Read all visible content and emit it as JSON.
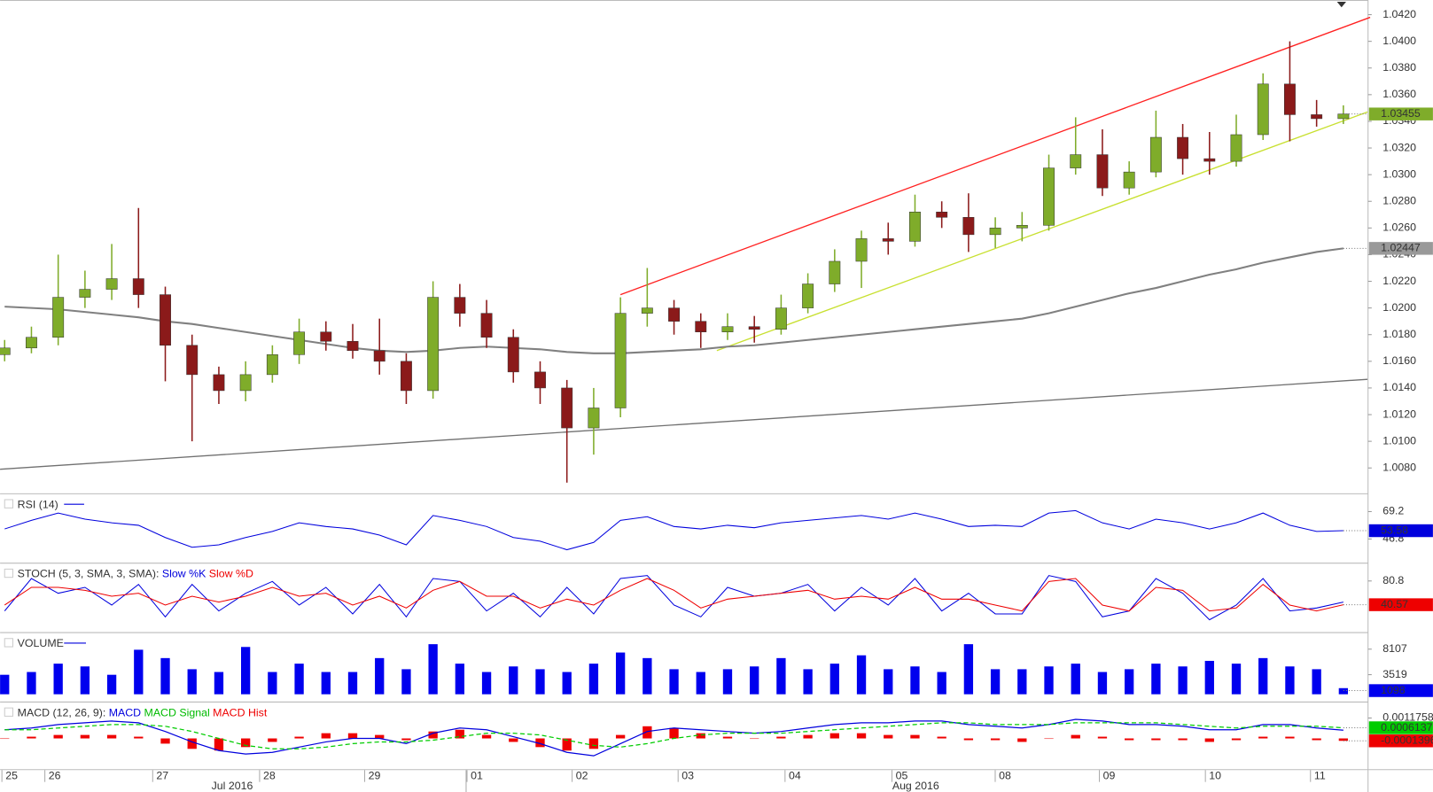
{
  "chart_data": [
    {
      "type": "candlestick",
      "open": [
        1.0165,
        1.017,
        1.0178,
        1.0208,
        1.0214,
        1.0222,
        1.021,
        1.0172,
        1.015,
        1.0138,
        1.015,
        1.0165,
        1.0182,
        1.0175,
        1.0168,
        1.016,
        1.0138,
        1.0208,
        1.0196,
        1.0178,
        1.0152,
        1.014,
        1.011,
        1.0125,
        1.0196,
        1.02,
        1.019,
        1.0182,
        1.0186,
        1.0184,
        1.02,
        1.0218,
        1.0235,
        1.0252,
        1.025,
        1.0272,
        1.0268,
        1.0255,
        1.026,
        1.0262,
        1.0305,
        1.0315,
        1.029,
        1.0302,
        1.0328,
        1.0312,
        1.031,
        1.033,
        1.0368,
        1.0345,
        1.0342
      ],
      "high": [
        1.0176,
        1.0186,
        1.024,
        1.0228,
        1.0248,
        1.0275,
        1.0216,
        1.018,
        1.0156,
        1.016,
        1.0172,
        1.0192,
        1.019,
        1.0188,
        1.0192,
        1.0166,
        1.022,
        1.0218,
        1.0206,
        1.0184,
        1.016,
        1.0146,
        1.014,
        1.0208,
        1.023,
        1.0206,
        1.0196,
        1.0196,
        1.0194,
        1.021,
        1.0226,
        1.0244,
        1.0258,
        1.0264,
        1.0285,
        1.028,
        1.0286,
        1.0268,
        1.0272,
        1.0315,
        1.0343,
        1.0334,
        1.031,
        1.0348,
        1.0338,
        1.0332,
        1.0345,
        1.0376,
        1.04,
        1.0356,
        1.0352
      ],
      "low": [
        1.016,
        1.0166,
        1.0172,
        1.02,
        1.0206,
        1.02,
        1.0145,
        1.01,
        1.0128,
        1.013,
        1.0144,
        1.0158,
        1.0168,
        1.0162,
        1.015,
        1.0128,
        1.0132,
        1.0186,
        1.017,
        1.0144,
        1.0128,
        1.0069,
        1.009,
        1.0118,
        1.0186,
        1.018,
        1.017,
        1.0176,
        1.0174,
        1.018,
        1.0196,
        1.0212,
        1.0215,
        1.024,
        1.0246,
        1.026,
        1.0242,
        1.0245,
        1.025,
        1.0258,
        1.03,
        1.0284,
        1.0285,
        1.0298,
        1.03,
        1.03,
        1.0306,
        1.0326,
        1.0325,
        1.0336,
        1.0338
      ],
      "close": [
        1.017,
        1.0178,
        1.0208,
        1.0214,
        1.0222,
        1.021,
        1.0172,
        1.015,
        1.0138,
        1.015,
        1.0165,
        1.0182,
        1.0175,
        1.0168,
        1.016,
        1.0138,
        1.0208,
        1.0196,
        1.0178,
        1.0152,
        1.014,
        1.011,
        1.0125,
        1.0196,
        1.02,
        1.019,
        1.0182,
        1.0186,
        1.0184,
        1.02,
        1.0218,
        1.0235,
        1.0252,
        1.025,
        1.0272,
        1.0268,
        1.0255,
        1.026,
        1.0262,
        1.0305,
        1.0315,
        1.029,
        1.0302,
        1.0328,
        1.0312,
        1.031,
        1.033,
        1.0368,
        1.0345,
        1.0342,
        1.03455
      ],
      "up_color": "#7fac2a",
      "down_color": "#8b1a1a",
      "ma": [
        1.0201,
        1.02,
        1.0199,
        1.0197,
        1.0195,
        1.0193,
        1.019,
        1.0188,
        1.0185,
        1.0182,
        1.0179,
        1.0176,
        1.0173,
        1.017,
        1.0168,
        1.0167,
        1.0168,
        1.017,
        1.0171,
        1.017,
        1.0169,
        1.0167,
        1.0166,
        1.0166,
        1.0167,
        1.0168,
        1.0169,
        1.0171,
        1.0172,
        1.0174,
        1.0176,
        1.0178,
        1.018,
        1.0182,
        1.0184,
        1.0186,
        1.0188,
        1.019,
        1.0192,
        1.0196,
        1.0201,
        1.0206,
        1.0211,
        1.0215,
        1.022,
        1.0225,
        1.0229,
        1.0234,
        1.0238,
        1.0242,
        1.02447
      ],
      "ma_color": "#808080",
      "trendlines": [
        {
          "color": "#ff2020",
          "x": [
            23,
            51
          ],
          "y": [
            1.021,
            1.0418
          ]
        },
        {
          "color": "#c8e030",
          "x": [
            26.6,
            50.9
          ],
          "y": [
            1.0168,
            1.0347
          ]
        },
        {
          "color": "#707070",
          "x": [
            -0.17,
            50.9
          ],
          "y": [
            1.0079,
            1.01465
          ]
        }
      ],
      "ylim": [
        1.0061,
        1.0431
      ],
      "yticks": [
        {
          "value": 1.008,
          "label": "1.0080"
        },
        {
          "value": 1.01,
          "label": "1.0100"
        },
        {
          "value": 1.012,
          "label": "1.0120"
        },
        {
          "value": 1.014,
          "label": "1.0140"
        },
        {
          "value": 1.016,
          "label": "1.0160"
        },
        {
          "value": 1.018,
          "label": "1.0180"
        },
        {
          "value": 1.02,
          "label": "1.0200"
        },
        {
          "value": 1.022,
          "label": "1.0220"
        },
        {
          "value": 1.024,
          "label": "1.0240"
        },
        {
          "value": 1.026,
          "label": "1.0260"
        },
        {
          "value": 1.028,
          "label": "1.0280"
        },
        {
          "value": 1.03,
          "label": "1.0300"
        },
        {
          "value": 1.032,
          "label": "1.0320"
        },
        {
          "value": 1.034,
          "label": "1.0340"
        },
        {
          "value": 1.036,
          "label": "1.0360"
        },
        {
          "value": 1.038,
          "label": "1.0380"
        },
        {
          "value": 1.04,
          "label": "1.0400"
        },
        {
          "value": 1.042,
          "label": "1.0420"
        }
      ],
      "days": [
        "25",
        "26",
        "27",
        "28",
        "29",
        "01",
        "02",
        "03",
        "04",
        "05",
        "08",
        "09",
        "10",
        "11"
      ],
      "months": [
        "Jul 2016",
        "Aug 2016"
      ]
    },
    {
      "type": "line",
      "title": "RSI (14)",
      "series": [
        {
          "name": "RSI",
          "color": "#0000dd",
          "values": [
            55,
            62,
            68,
            63,
            60,
            58,
            48,
            40,
            42,
            48,
            53,
            60,
            57,
            55,
            50,
            42,
            66,
            62,
            57,
            48,
            45,
            38,
            44,
            62,
            65,
            57,
            55,
            58,
            56,
            60,
            62,
            64,
            66,
            63,
            68,
            63,
            57,
            58,
            57,
            68,
            70,
            60,
            55,
            63,
            60,
            55,
            60,
            68,
            58,
            53,
            53.58
          ]
        }
      ],
      "ylim": [
        27.4,
        83.4
      ],
      "yticks": [
        69.2,
        46.8
      ]
    },
    {
      "type": "line",
      "title": "STOCH (5, 3, SMA, 3, SMA):",
      "series": [
        {
          "name": "Slow %K",
          "color": "#0000dd",
          "values": [
            30,
            85,
            60,
            70,
            40,
            75,
            20,
            75,
            30,
            60,
            80,
            40,
            70,
            25,
            75,
            20,
            85,
            80,
            30,
            60,
            20,
            70,
            25,
            85,
            90,
            40,
            20,
            70,
            55,
            60,
            75,
            30,
            70,
            40,
            85,
            30,
            60,
            25,
            25,
            90,
            80,
            20,
            30,
            85,
            60,
            15,
            40,
            85,
            30,
            35,
            45
          ]
        },
        {
          "name": "Slow %D",
          "color": "#ee0000",
          "values": [
            40,
            70,
            70,
            65,
            55,
            60,
            40,
            55,
            45,
            55,
            70,
            55,
            60,
            40,
            55,
            35,
            65,
            80,
            55,
            55,
            35,
            50,
            40,
            65,
            85,
            65,
            35,
            50,
            55,
            60,
            65,
            50,
            55,
            50,
            70,
            50,
            50,
            40,
            30,
            80,
            85,
            40,
            30,
            70,
            65,
            30,
            35,
            75,
            40,
            30,
            40.57
          ]
        }
      ],
      "ylim": [
        -5.9,
        110.2
      ],
      "yticks": [
        80.8
      ]
    },
    {
      "type": "bar",
      "title": "VOLUME",
      "color": "#0000ee",
      "values": [
        3500,
        4000,
        5500,
        5000,
        3500,
        8000,
        6500,
        4500,
        4000,
        8500,
        4000,
        5500,
        4000,
        4000,
        6500,
        4500,
        9000,
        5500,
        4000,
        5000,
        4500,
        4000,
        5500,
        7500,
        6500,
        4500,
        4000,
        4500,
        5000,
        6500,
        4500,
        5500,
        7000,
        4500,
        5000,
        4000,
        9000,
        4500,
        4500,
        5000,
        5500,
        4000,
        4500,
        5500,
        5000,
        6000,
        5500,
        6500,
        5000,
        4500,
        1098
      ],
      "ylim": [
        0,
        11000
      ],
      "yticks": [
        8107,
        3519
      ]
    },
    {
      "type": "macd",
      "title": "MACD (12, 26, 9):",
      "series": [
        {
          "name": "MACD",
          "color": "#0000dd",
          "values": [
            0.0005,
            0.0006,
            0.0008,
            0.0009,
            0.001,
            0.0009,
            0.0004,
            -0.0002,
            -0.0007,
            -0.0009,
            -0.0008,
            -0.0005,
            -0.0002,
            0,
            0,
            -0.0003,
            0.0003,
            0.0006,
            0.0005,
            0.0001,
            -0.0003,
            -0.0008,
            -0.001,
            -0.0003,
            0.0004,
            0.0006,
            0.0005,
            0.0004,
            0.0003,
            0.0004,
            0.0006,
            0.0008,
            0.0009,
            0.0009,
            0.001,
            0.001,
            0.0008,
            0.0007,
            0.0006,
            0.0008,
            0.0011,
            0.001,
            0.0008,
            0.0008,
            0.0007,
            0.0005,
            0.0005,
            0.0008,
            0.0008,
            0.0006,
            0.0004741
          ]
        },
        {
          "name": "MACD Signal",
          "color": "#00cc00",
          "values": [
            0.0005,
            0.0005,
            0.0006,
            0.0007,
            0.0008,
            0.0008,
            0.0007,
            0.0004,
            0,
            -0.0004,
            -0.0006,
            -0.0006,
            -0.0005,
            -0.0003,
            -0.0002,
            -0.0002,
            -0.0001,
            0.0001,
            0.0003,
            0.0003,
            0.0002,
            -0.0001,
            -0.0004,
            -0.0005,
            -0.0003,
            0,
            0.0002,
            0.0003,
            0.0003,
            0.0003,
            0.0004,
            0.0005,
            0.0006,
            0.0007,
            0.0008,
            0.0009,
            0.0009,
            0.0008,
            0.0008,
            0.0008,
            0.0009,
            0.0009,
            0.0009,
            0.0009,
            0.0008,
            0.0007,
            0.0006,
            0.0007,
            0.0007,
            0.0007,
            0.0006137
          ]
        },
        {
          "name": "MACD Hist",
          "color": "#ee0000",
          "values": [
            0,
            0.0001,
            0.0002,
            0.0002,
            0.0002,
            0.0001,
            -0.0003,
            -0.0006,
            -0.0007,
            -0.0005,
            -0.0002,
            0.0001,
            0.0003,
            0.0003,
            0.0002,
            -0.0001,
            0.0004,
            0.0005,
            0.0002,
            -0.0002,
            -0.0005,
            -0.0007,
            -0.0006,
            0.0002,
            0.0007,
            0.0006,
            0.0003,
            0.0001,
            0,
            0.0001,
            0.0002,
            0.0003,
            0.0003,
            0.0002,
            0.0002,
            0.0001,
            -0.0001,
            -0.0001,
            -0.0002,
            0,
            0.0002,
            0.0001,
            -0.0001,
            -0.0001,
            -0.0001,
            -0.0002,
            -0.0001,
            0.0001,
            0.0001,
            -0.0001,
            -0.0001396
          ]
        }
      ],
      "ylim": [
        -0.00177,
        0.00207
      ],
      "yticks": [
        0.0011758
      ]
    }
  ]
}
